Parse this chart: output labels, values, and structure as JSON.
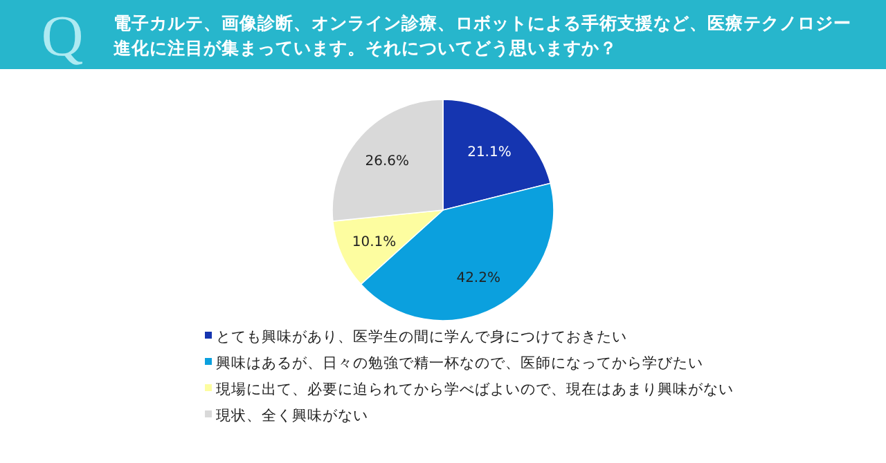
{
  "chart_data": {
    "type": "pie",
    "title": "電子カルテ、画像診断、オンライン診療、ロボットによる手術支援など、医療テクノロジー進化に注目が集まっています。それについてどう思いますか？",
    "annotations": [
      "Q"
    ],
    "categories": [
      "とても興味があり、医学生の間に学んで身につけておきたい",
      "興味はあるが、日々の勉強で精一杯なので、医師になってから学びたい",
      "現場に出て、必要に迫られてから学べばよいので、現在はあまり興味がない",
      "現状、全く興味がない"
    ],
    "values": [
      21.1,
      42.2,
      10.1,
      26.6
    ],
    "value_labels": [
      "21.1%",
      "42.2%",
      "10.1%",
      "26.6%"
    ],
    "colors": [
      "#1535b0",
      "#0ba0de",
      "#fdfda0",
      "#d9d9d9"
    ],
    "legend": "bottom"
  }
}
